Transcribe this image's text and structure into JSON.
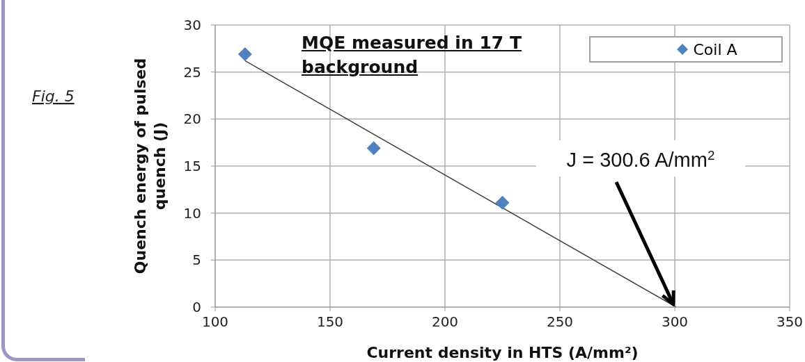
{
  "chart_data": {
    "type": "scatter",
    "title": "MQE measured in 17 T background",
    "xlabel": "Current density in HTS (A/mm²)",
    "ylabel": "Quench energy of pulsed quench (J)",
    "annotations": [
      "Fig. 5",
      {
        "text": "J = 300.6 A/mm$^{2}$",
        "x": 300.6,
        "y": 0
      }
    ],
    "series": [
      {
        "name": "Coil A",
        "color": "#4f81bd",
        "x": [
          113,
          169,
          225
        ],
        "values": [
          26.9,
          16.9,
          11.1
        ],
        "marker": "diamond"
      },
      {
        "type": "line",
        "color": "#404040",
        "x": [
          113,
          300.6
        ],
        "values": [
          26.2,
          0
        ]
      }
    ],
    "xlim": [
      100,
      350
    ],
    "xticks": [
      100,
      150,
      200,
      250,
      300,
      350
    ],
    "ylim": [
      0,
      30
    ],
    "yticks": [
      0,
      5,
      10,
      15,
      20,
      25,
      30
    ],
    "grid": true,
    "legend": "top right"
  }
}
